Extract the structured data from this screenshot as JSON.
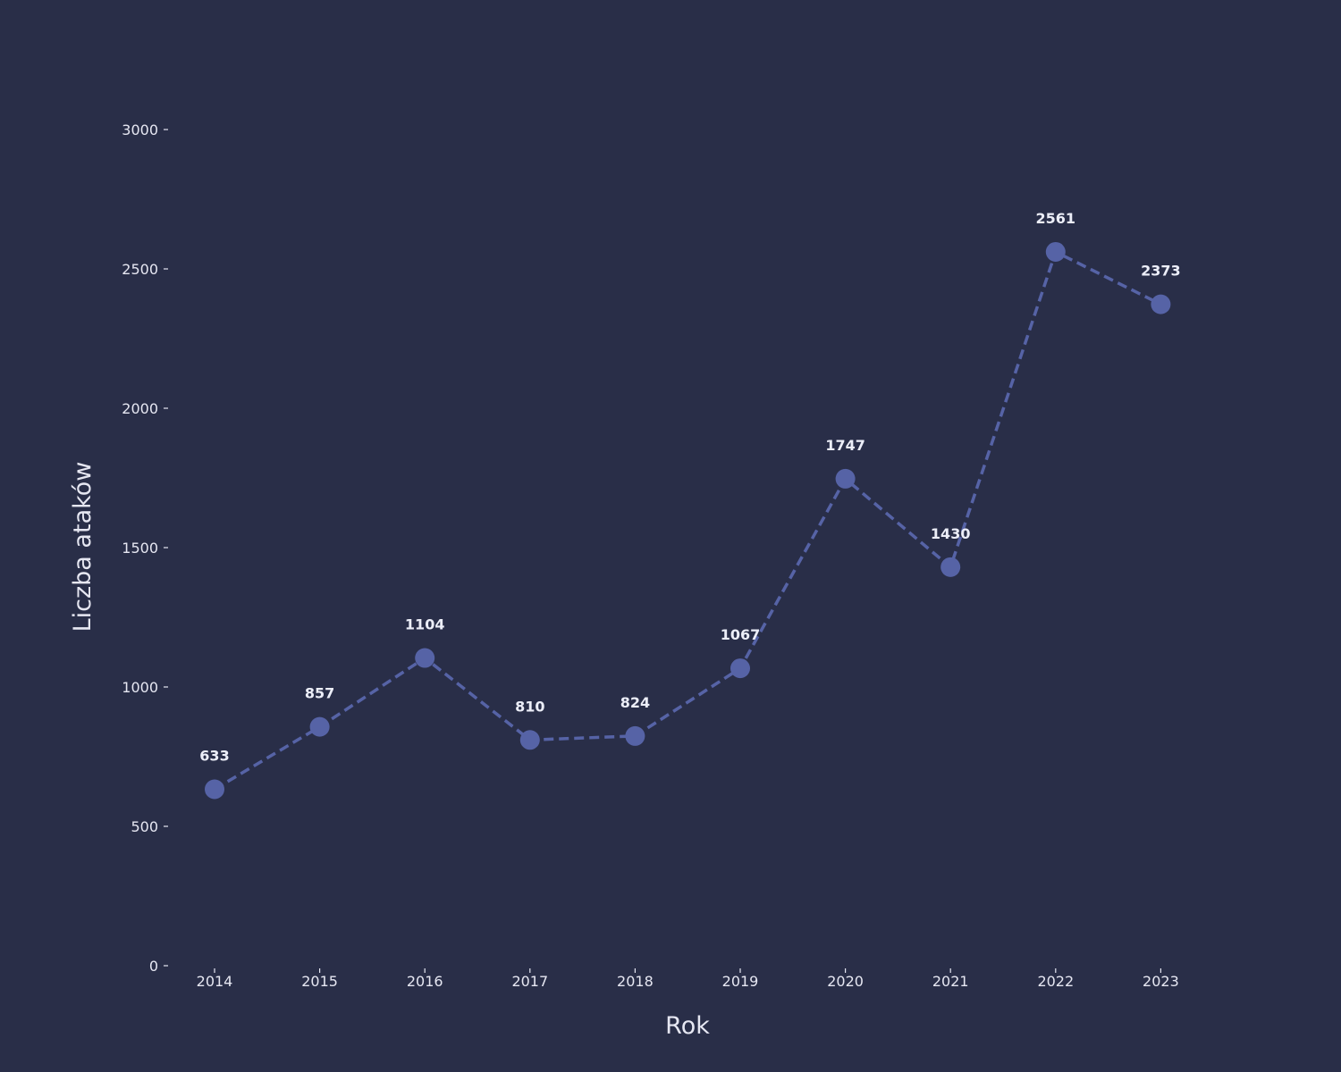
{
  "chart_data": {
    "type": "line",
    "title": "",
    "xlabel": "Rok",
    "ylabel": "Liczba ataków",
    "x": [
      "2014",
      "2015",
      "2016",
      "2017",
      "2018",
      "2019",
      "2020",
      "2021",
      "2022",
      "2023"
    ],
    "series": [
      {
        "values": [
          633,
          857,
          1104,
          810,
          824,
          1067,
          1747,
          1430,
          2561,
          2373
        ]
      }
    ],
    "data_labels": [
      "633",
      "857",
      "1104",
      "810",
      "824",
      "1067",
      "1747",
      "1430",
      "2561",
      "2373"
    ],
    "ylim": [
      0,
      3000
    ],
    "yticks": [
      "0",
      "500",
      "1000",
      "1500",
      "2000",
      "2500",
      "3000"
    ],
    "line_style": "dashed",
    "marker": "circle",
    "grid": false,
    "legend": "none",
    "colors": {
      "background": "#292e48",
      "series": "#5663a6",
      "text": "#e6e7f2"
    }
  }
}
